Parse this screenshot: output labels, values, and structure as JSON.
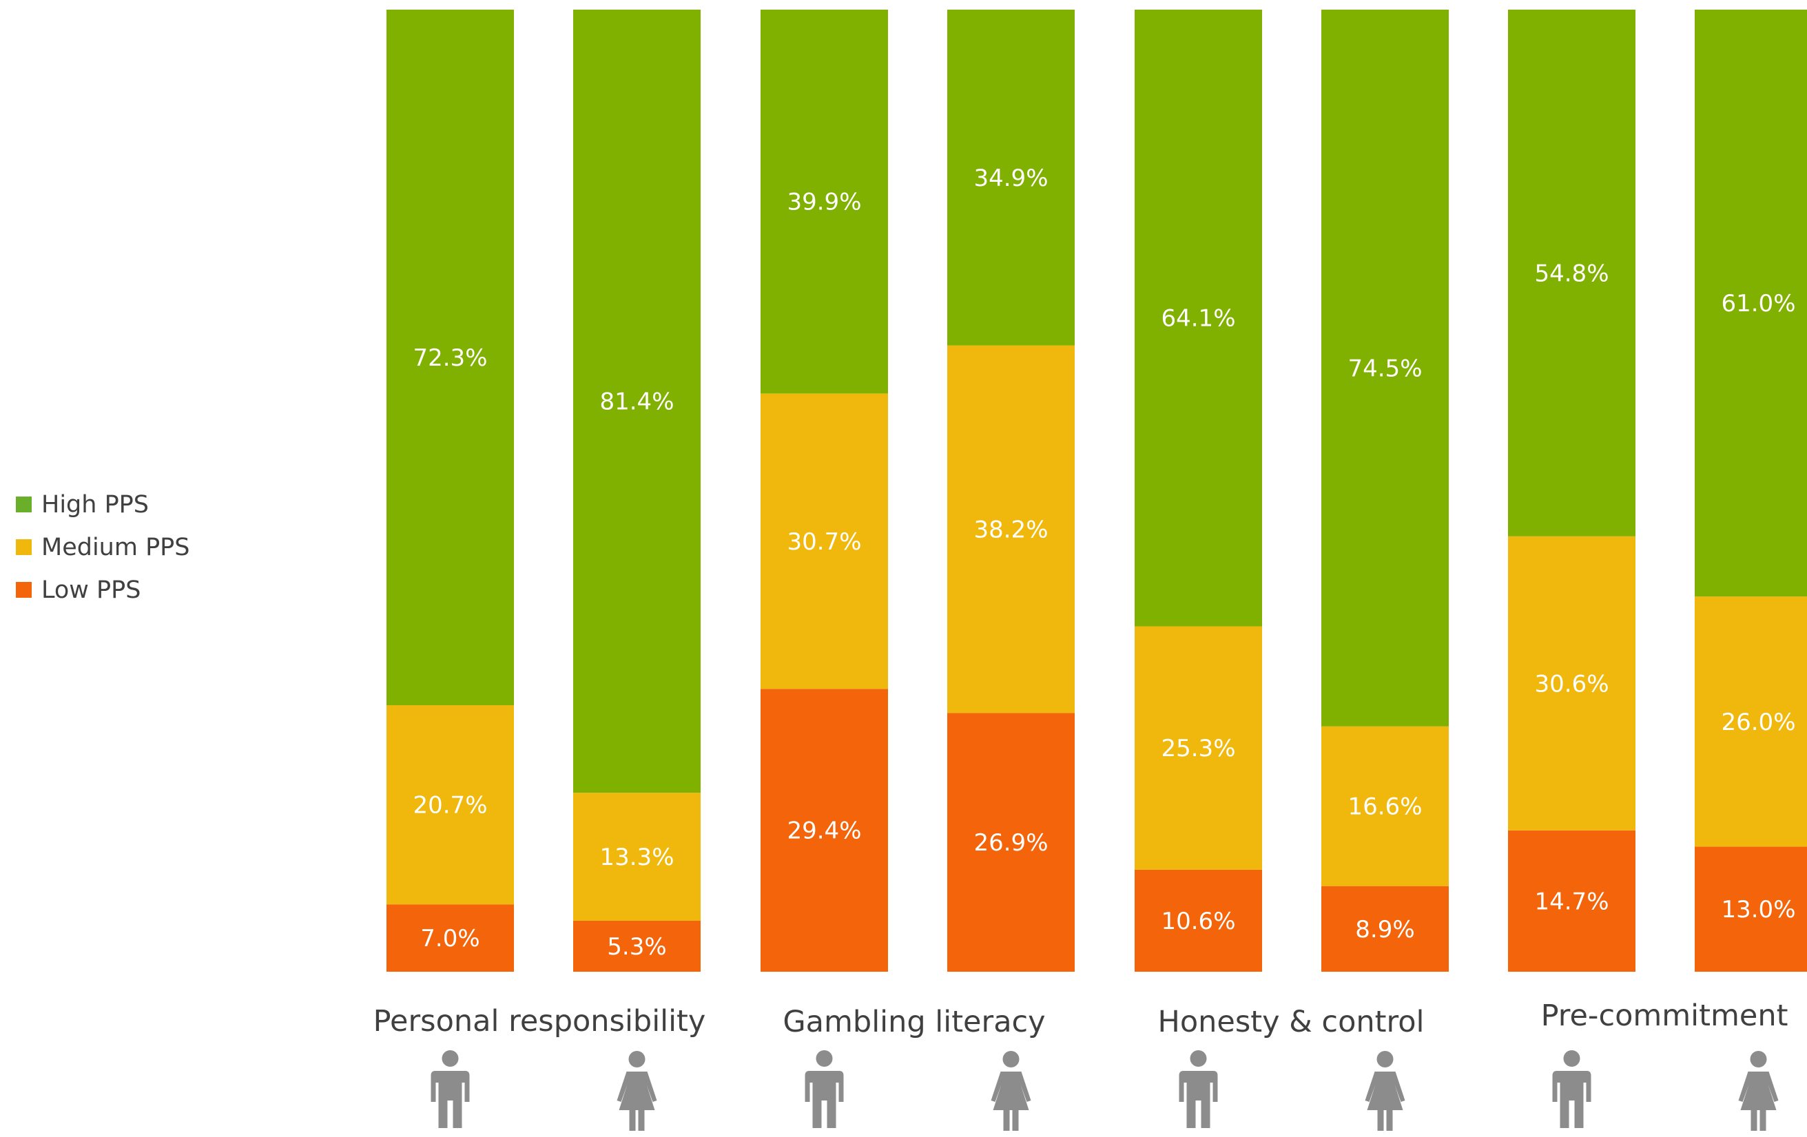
{
  "chart_data": {
    "type": "bar",
    "stacked": true,
    "percent_stacked": true,
    "groups": [
      "Personal responsibility",
      "Gambling literacy",
      "Honesty & control",
      "Pre-commitment"
    ],
    "bars": [
      {
        "group": "Personal responsibility",
        "gender_icon": "male-person-icon"
      },
      {
        "group": "Personal responsibility",
        "gender_icon": "female-person-icon"
      },
      {
        "group": "Gambling literacy",
        "gender_icon": "male-person-icon"
      },
      {
        "group": "Gambling literacy",
        "gender_icon": "female-person-icon"
      },
      {
        "group": "Honesty & control",
        "gender_icon": "male-person-icon"
      },
      {
        "group": "Honesty & control",
        "gender_icon": "female-person-icon"
      },
      {
        "group": "Pre-commitment",
        "gender_icon": "male-person-icon"
      },
      {
        "group": "Pre-commitment",
        "gender_icon": "female-person-icon"
      }
    ],
    "series": [
      {
        "name": "Low PPS",
        "color": "#f4640a",
        "values": [
          7.0,
          5.3,
          29.4,
          26.9,
          10.6,
          8.9,
          14.7,
          13.0
        ],
        "labels": [
          "7.0%",
          "5.3%",
          "29.4%",
          "26.9%",
          "10.6%",
          "8.9%",
          "14.7%",
          "13.0%"
        ]
      },
      {
        "name": "Medium PPS",
        "color": "#f0b80c",
        "values": [
          20.7,
          13.3,
          30.7,
          38.2,
          25.3,
          16.6,
          30.6,
          26.0
        ],
        "labels": [
          "20.7%",
          "13.3%",
          "30.7%",
          "38.2%",
          "25.3%",
          "16.6%",
          "30.6%",
          "26.0%"
        ]
      },
      {
        "name": "High PPS",
        "color": "#80b000",
        "values": [
          72.3,
          81.4,
          39.9,
          34.9,
          64.1,
          74.5,
          54.8,
          61.0
        ],
        "labels": [
          "72.3%",
          "81.4%",
          "39.9%",
          "34.9%",
          "64.1%",
          "74.5%",
          "54.8%",
          "61.0%"
        ]
      }
    ],
    "ylim": [
      0,
      100
    ],
    "legend": {
      "position": "left",
      "order": [
        "High PPS",
        "Medium PPS",
        "Low PPS"
      ],
      "colors": {
        "High PPS": "#6aaf2a",
        "Medium PPS": "#f0b80c",
        "Low PPS": "#f4640a"
      }
    },
    "icon_color": "#8c8c8c",
    "label_text_color": "#ffffff",
    "group_label_color": "#404040",
    "legend_text_color": "#404040",
    "grid": false,
    "axes_visible": false
  }
}
